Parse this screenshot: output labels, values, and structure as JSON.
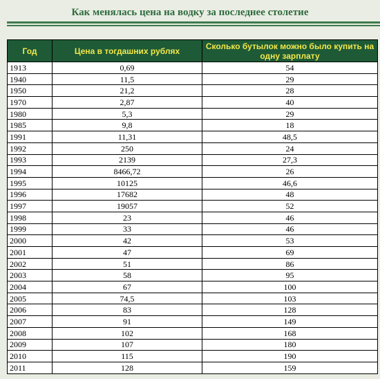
{
  "header": {
    "title": "Как менялась цена на водку за последнее столетие"
  },
  "table": {
    "columns": [
      "Год",
      "Цена в тогдашних рублях",
      "Сколько бутылок можно было купить на одну зарплату"
    ],
    "rows": [
      [
        "1913",
        "0,69",
        "54"
      ],
      [
        "1940",
        "11,5",
        "29"
      ],
      [
        "1950",
        "21,2",
        "28"
      ],
      [
        "1970",
        "2,87",
        "40"
      ],
      [
        "1980",
        "5,3",
        "29"
      ],
      [
        "1985",
        "9,8",
        "18"
      ],
      [
        "1991",
        "11,31",
        "48,5"
      ],
      [
        "1992",
        "250",
        "24"
      ],
      [
        "1993",
        "2139",
        "27,3"
      ],
      [
        "1994",
        "8466,72",
        "26"
      ],
      [
        "1995",
        "10125",
        "46,6"
      ],
      [
        "1996",
        "17682",
        "48"
      ],
      [
        "1997",
        "19057",
        "52"
      ],
      [
        "1998",
        "23",
        "46"
      ],
      [
        "1999",
        "33",
        "46"
      ],
      [
        "2000",
        "42",
        "53"
      ],
      [
        "2001",
        "47",
        "69"
      ],
      [
        "2002",
        "51",
        "86"
      ],
      [
        "2003",
        "58",
        "95"
      ],
      [
        "2004",
        "67",
        "100"
      ],
      [
        "2005",
        "74,5",
        "103"
      ],
      [
        "2006",
        "83",
        "128"
      ],
      [
        "2007",
        "91",
        "149"
      ],
      [
        "2008",
        "102",
        "168"
      ],
      [
        "2009",
        "107",
        "180"
      ],
      [
        "2010",
        "115",
        "190"
      ],
      [
        "2011",
        "128",
        "159"
      ]
    ]
  }
}
